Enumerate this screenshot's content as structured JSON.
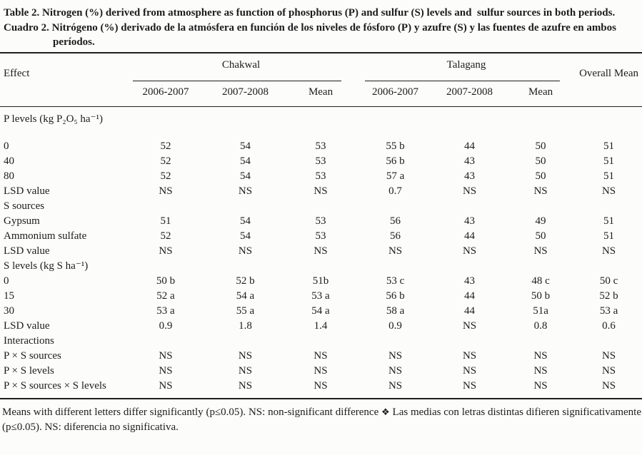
{
  "colors": {
    "text": "#1c1c1c",
    "background": "#fcfcfb",
    "rule": "#1e1e1e"
  },
  "title": {
    "en_label": "Table 2.",
    "en_text": "Nitrogen (%) derived from atmosphere as function of phosphorus (P) and sulfur (S) levels and  sulfur sources in both periods.",
    "es_label": "Cuadro 2.",
    "es_text": "Nitrógeno (%) derivado de la atmósfera en función de los niveles de fósforo (P) y azufre (S) y las fuentes de azufre en ambos períodos."
  },
  "table": {
    "effect_header": "Effect",
    "group_headers": [
      "Chakwal",
      "Talagang"
    ],
    "sub_headers": [
      "2006-2007",
      "2007-2008",
      "Mean",
      "2006-2007",
      "2007-2008",
      "Mean"
    ],
    "overall_header": "Overall Mean",
    "rows": [
      {
        "type": "section",
        "label": "P levels (kg P₂O₅ ha⁻¹)",
        "gap_after": true
      },
      {
        "type": "data",
        "label": "0",
        "values": [
          "52",
          "54",
          "53",
          "55 b",
          "44",
          "50",
          "51"
        ]
      },
      {
        "type": "data",
        "label": "40",
        "values": [
          "52",
          "54",
          "53",
          "56 b",
          "43",
          "50",
          "51"
        ]
      },
      {
        "type": "data",
        "label": "80",
        "values": [
          "52",
          "54",
          "53",
          "57 a",
          "43",
          "50",
          "51"
        ]
      },
      {
        "type": "data",
        "label": "LSD value",
        "values": [
          "NS",
          "NS",
          "NS",
          "0.7",
          "NS",
          "NS",
          "NS"
        ]
      },
      {
        "type": "section",
        "label": "S sources"
      },
      {
        "type": "data",
        "label": "Gypsum",
        "values": [
          "51",
          "54",
          "53",
          "56",
          "43",
          "49",
          "51"
        ]
      },
      {
        "type": "data",
        "label": "Ammonium sulfate",
        "values": [
          "52",
          "54",
          "53",
          "56",
          "44",
          "50",
          "51"
        ]
      },
      {
        "type": "data",
        "label": "LSD value",
        "values": [
          "NS",
          "NS",
          "NS",
          "NS",
          "NS",
          "NS",
          "NS"
        ]
      },
      {
        "type": "section",
        "label": "S levels (kg S ha⁻¹)"
      },
      {
        "type": "data",
        "label": "0",
        "values": [
          "50 b",
          "52 b",
          "51b",
          "53 c",
          "43",
          "48 c",
          "50 c"
        ]
      },
      {
        "type": "data",
        "label": "15",
        "values": [
          "52 a",
          "54 a",
          "53 a",
          "56 b",
          "44",
          "50 b",
          "52 b"
        ]
      },
      {
        "type": "data",
        "label": "30",
        "values": [
          "53 a",
          "55 a",
          "54 a",
          "58 a",
          "44",
          "51a",
          "53 a"
        ]
      },
      {
        "type": "data",
        "label": "LSD value",
        "values": [
          "0.9",
          "1.8",
          "1.4",
          "0.9",
          "NS",
          "0.8",
          "0.6"
        ]
      },
      {
        "type": "section",
        "label": "Interactions"
      },
      {
        "type": "data",
        "label": "P × S sources",
        "values": [
          "NS",
          "NS",
          "NS",
          "NS",
          "NS",
          "NS",
          "NS"
        ]
      },
      {
        "type": "data",
        "label": "P × S levels",
        "values": [
          "NS",
          "NS",
          "NS",
          "NS",
          "NS",
          "NS",
          "NS"
        ]
      },
      {
        "type": "data",
        "label": "P × S sources × S levels",
        "values": [
          "NS",
          "NS",
          "NS",
          "NS",
          "NS",
          "NS",
          "NS"
        ]
      }
    ]
  },
  "footnote": {
    "en": "Means with different letters differ significantly (p≤0.05). NS:  non-significant difference",
    "separator": "❖",
    "es": "Las medias con letras distintas difieren significativamente (p≤0.05). NS: diferencia no significativa."
  }
}
